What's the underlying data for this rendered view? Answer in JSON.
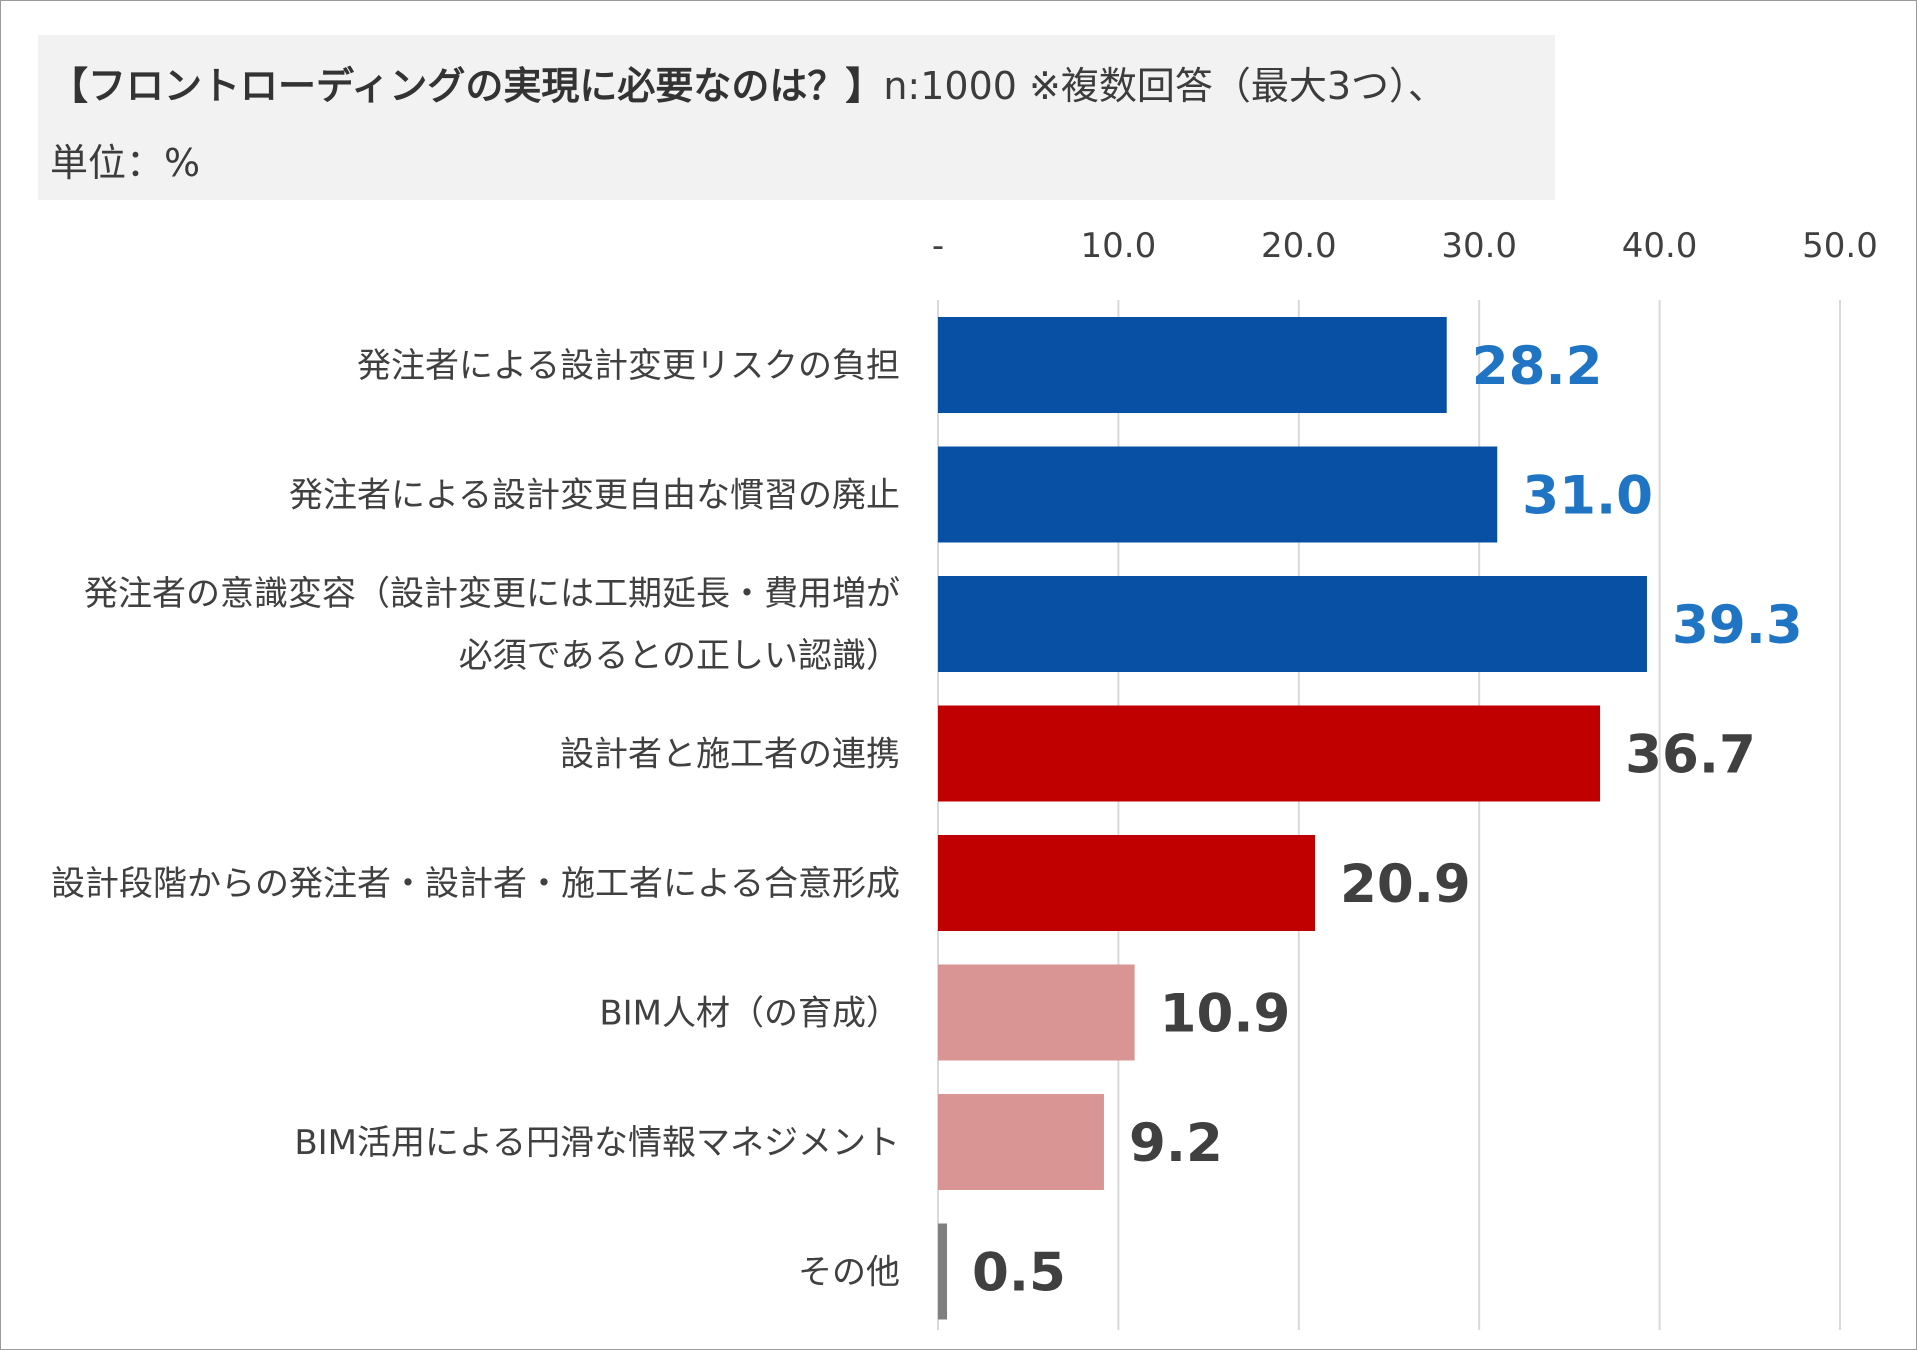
{
  "title": {
    "bold": "【フロントローディングの実現に必要なのは？】",
    "rest": "n:1000 ※複数回答（最大3つ）、",
    "line2": "単位：%"
  },
  "chart_data": {
    "type": "bar",
    "orientation": "horizontal",
    "title": "【フロントローディングの実現に必要なのは？】n:1000 ※複数回答（最大3つ）、単位：%",
    "xlim": [
      0,
      50
    ],
    "ticks": [
      {
        "value": 0,
        "label": "-"
      },
      {
        "value": 10,
        "label": "10.0"
      },
      {
        "value": 20,
        "label": "20.0"
      },
      {
        "value": 30,
        "label": "30.0"
      },
      {
        "value": 40,
        "label": "40.0"
      },
      {
        "value": 50,
        "label": "50.0"
      }
    ],
    "grid": true,
    "items": [
      {
        "label": [
          "発注者による設計変更リスクの負担"
        ],
        "value": 28.2,
        "display": "28.2",
        "color": "#0750a4",
        "label_color": "#1f74c4"
      },
      {
        "label": [
          "発注者による設計変更自由な慣習の廃止"
        ],
        "value": 31.0,
        "display": "31.0",
        "color": "#0750a4",
        "label_color": "#1f74c4"
      },
      {
        "label": [
          "発注者の意識変容（設計変更には工期延長・費用増が",
          "必須であるとの正しい認識）"
        ],
        "value": 39.3,
        "display": "39.3",
        "color": "#0750a4",
        "label_color": "#1f74c4"
      },
      {
        "label": [
          "設計者と施工者の連携"
        ],
        "value": 36.7,
        "display": "36.7",
        "color": "#c00000",
        "label_color": "#404040"
      },
      {
        "label": [
          "設計段階からの発注者・設計者・施工者による合意形成"
        ],
        "value": 20.9,
        "display": "20.9",
        "color": "#c00000",
        "label_color": "#404040"
      },
      {
        "label": [
          "BIM人材（の育成）"
        ],
        "value": 10.9,
        "display": "10.9",
        "color": "#d99594",
        "label_color": "#404040"
      },
      {
        "label": [
          "BIM活用による円滑な情報マネジメント"
        ],
        "value": 9.2,
        "display": "9.2",
        "color": "#d99594",
        "label_color": "#404040"
      },
      {
        "label": [
          "その他"
        ],
        "value": 0.5,
        "display": "0.5",
        "color": "#7f7f7f",
        "label_color": "#404040"
      }
    ]
  }
}
